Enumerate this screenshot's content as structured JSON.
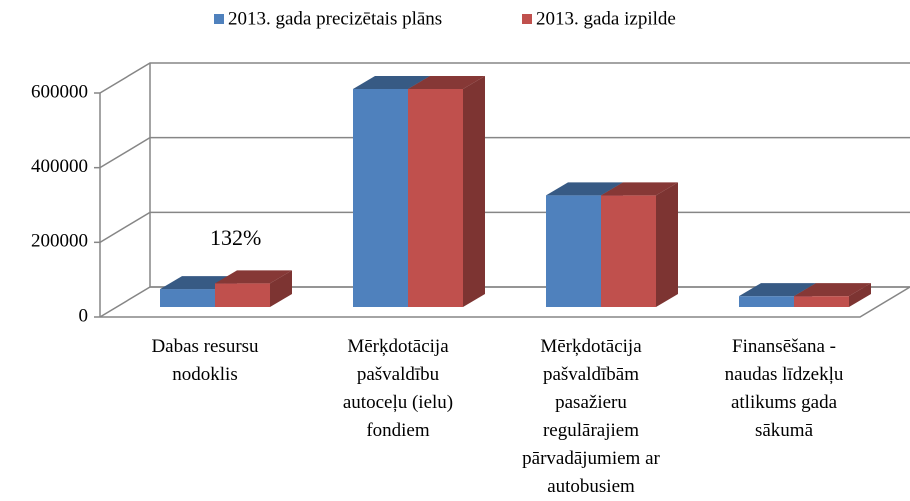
{
  "chart_data": {
    "type": "bar3d",
    "categories": [
      "Dabas resursu nodoklis",
      "Mērķdotācija pašvaldību autoceļu (ielu) fondiem",
      "Mērķdotācija pašvaldībām pasažieru regulārajiem pārvadājumiem ar autobusiem",
      "Finansēšana - naudas līdzekļu atlikums gada sākumā"
    ],
    "series": [
      {
        "name": "2013. gada precizētais plāns",
        "color": "#4f81bd",
        "values": [
          48000,
          584000,
          299000,
          29000
        ]
      },
      {
        "name": "2013. gada izpilde",
        "color": "#c0504d",
        "values": [
          63400,
          584000,
          299000,
          29000
        ]
      }
    ],
    "annotation": "132%",
    "ylim": [
      0,
      600000
    ],
    "yticks": [
      0,
      200000,
      400000,
      600000
    ],
    "grid": true,
    "legend": "top"
  }
}
